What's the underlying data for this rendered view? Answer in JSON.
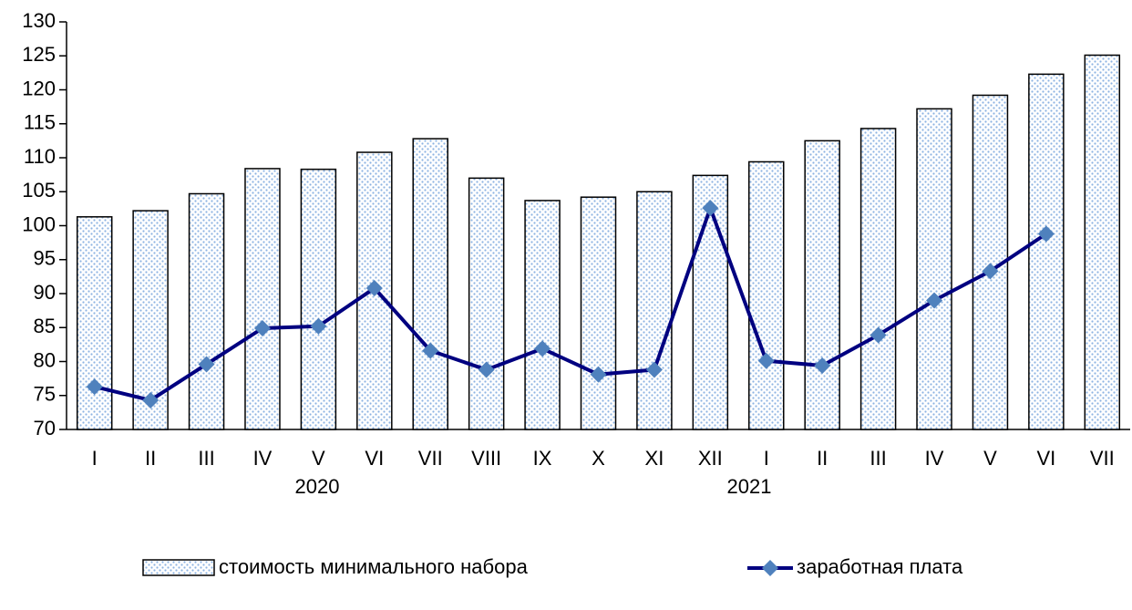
{
  "chart_data": {
    "type": "bar_line",
    "categories": [
      "I",
      "II",
      "III",
      "IV",
      "V",
      "VI",
      "VII",
      "VIII",
      "IX",
      "X",
      "XI",
      "XII",
      "I",
      "II",
      "III",
      "IV",
      "V",
      "VI",
      "VII"
    ],
    "year_labels": [
      "2020",
      "2021"
    ],
    "series": [
      {
        "name": "стоимость минимального набора",
        "type": "bar",
        "color": "#8db3e2",
        "values": [
          101.3,
          102.2,
          104.7,
          108.4,
          108.3,
          110.8,
          112.8,
          107.0,
          103.7,
          104.2,
          105.0,
          107.4,
          109.4,
          112.5,
          114.3,
          117.2,
          119.2,
          122.3,
          125.1
        ]
      },
      {
        "name": "заработная плата",
        "type": "line",
        "color": "#000080",
        "marker_color": "#4f81bd",
        "values": [
          76.3,
          74.3,
          79.6,
          84.9,
          85.2,
          90.8,
          81.6,
          78.8,
          81.9,
          78.1,
          78.8,
          102.6,
          80.1,
          79.4,
          83.9,
          89.0,
          93.3,
          98.8,
          null
        ]
      }
    ],
    "ylim": [
      70,
      130
    ],
    "yticks": [
      70,
      75,
      80,
      85,
      90,
      95,
      100,
      105,
      110,
      115,
      120,
      125,
      130
    ]
  }
}
